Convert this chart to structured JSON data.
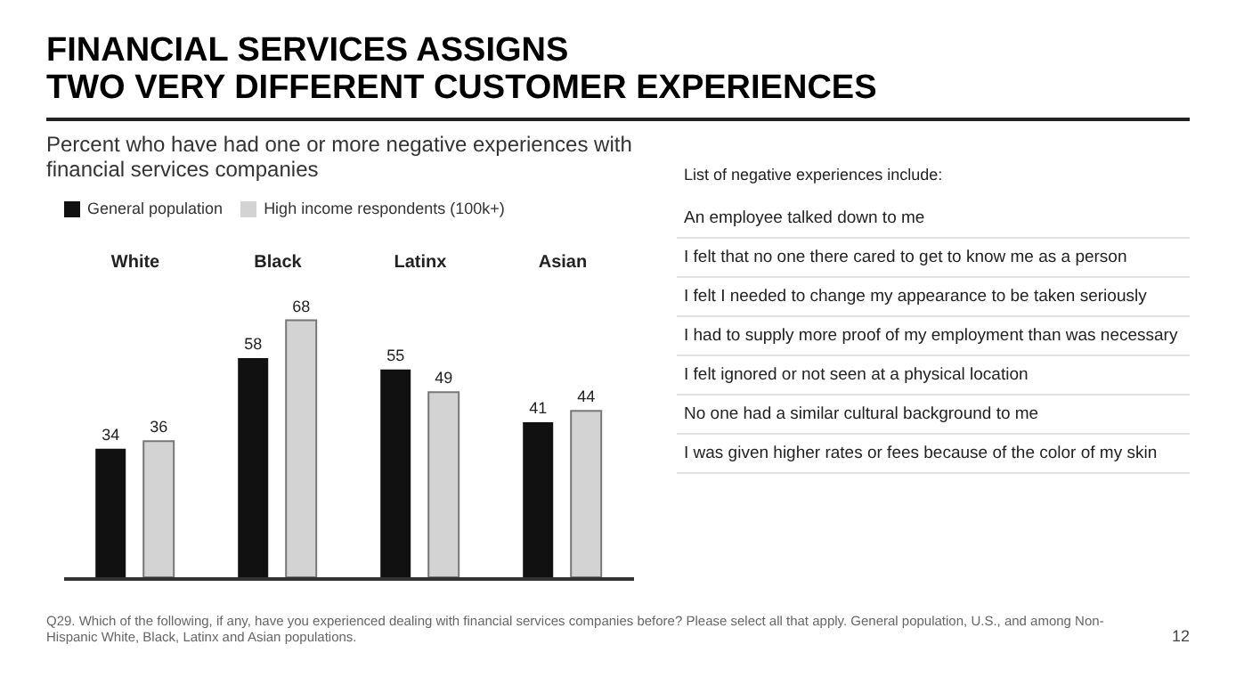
{
  "chart_data": {
    "type": "bar",
    "title": "FINANCIAL SERVICES ASSIGNS\nTWO VERY DIFFERENT CUSTOMER EXPERIENCES",
    "subtitle": "Percent who have had one or more negative experiences with financial services companies",
    "categories": [
      "White",
      "Black",
      "Latinx",
      "Asian"
    ],
    "series": [
      {
        "name": "General population",
        "color": "#111111",
        "values": [
          34,
          58,
          55,
          41
        ]
      },
      {
        "name": "High income respondents (100k+)",
        "color": "#d3d3d3",
        "values": [
          36,
          68,
          49,
          44
        ]
      }
    ],
    "data_labels": true,
    "legend": "top left",
    "annotations": [
      "List of negative experiences include:",
      "An employee talked down to me",
      "I felt that no one there cared to get to know me as a person",
      "I felt I needed to change my appearance to be taken seriously",
      "I had to supply more proof of my employment than was necessary",
      "I felt ignored or not seen at a physical location",
      "No one had a similar cultural background to me",
      "I was given higher rates or fees because of the color of my skin",
      "Q29. Which of the following, if any, have you experienced dealing with financial services companies before? Please select all that apply. General population, U.S., and among Non-Hispanic White, Black, Latinx and Asian populations.",
      "12"
    ]
  }
}
